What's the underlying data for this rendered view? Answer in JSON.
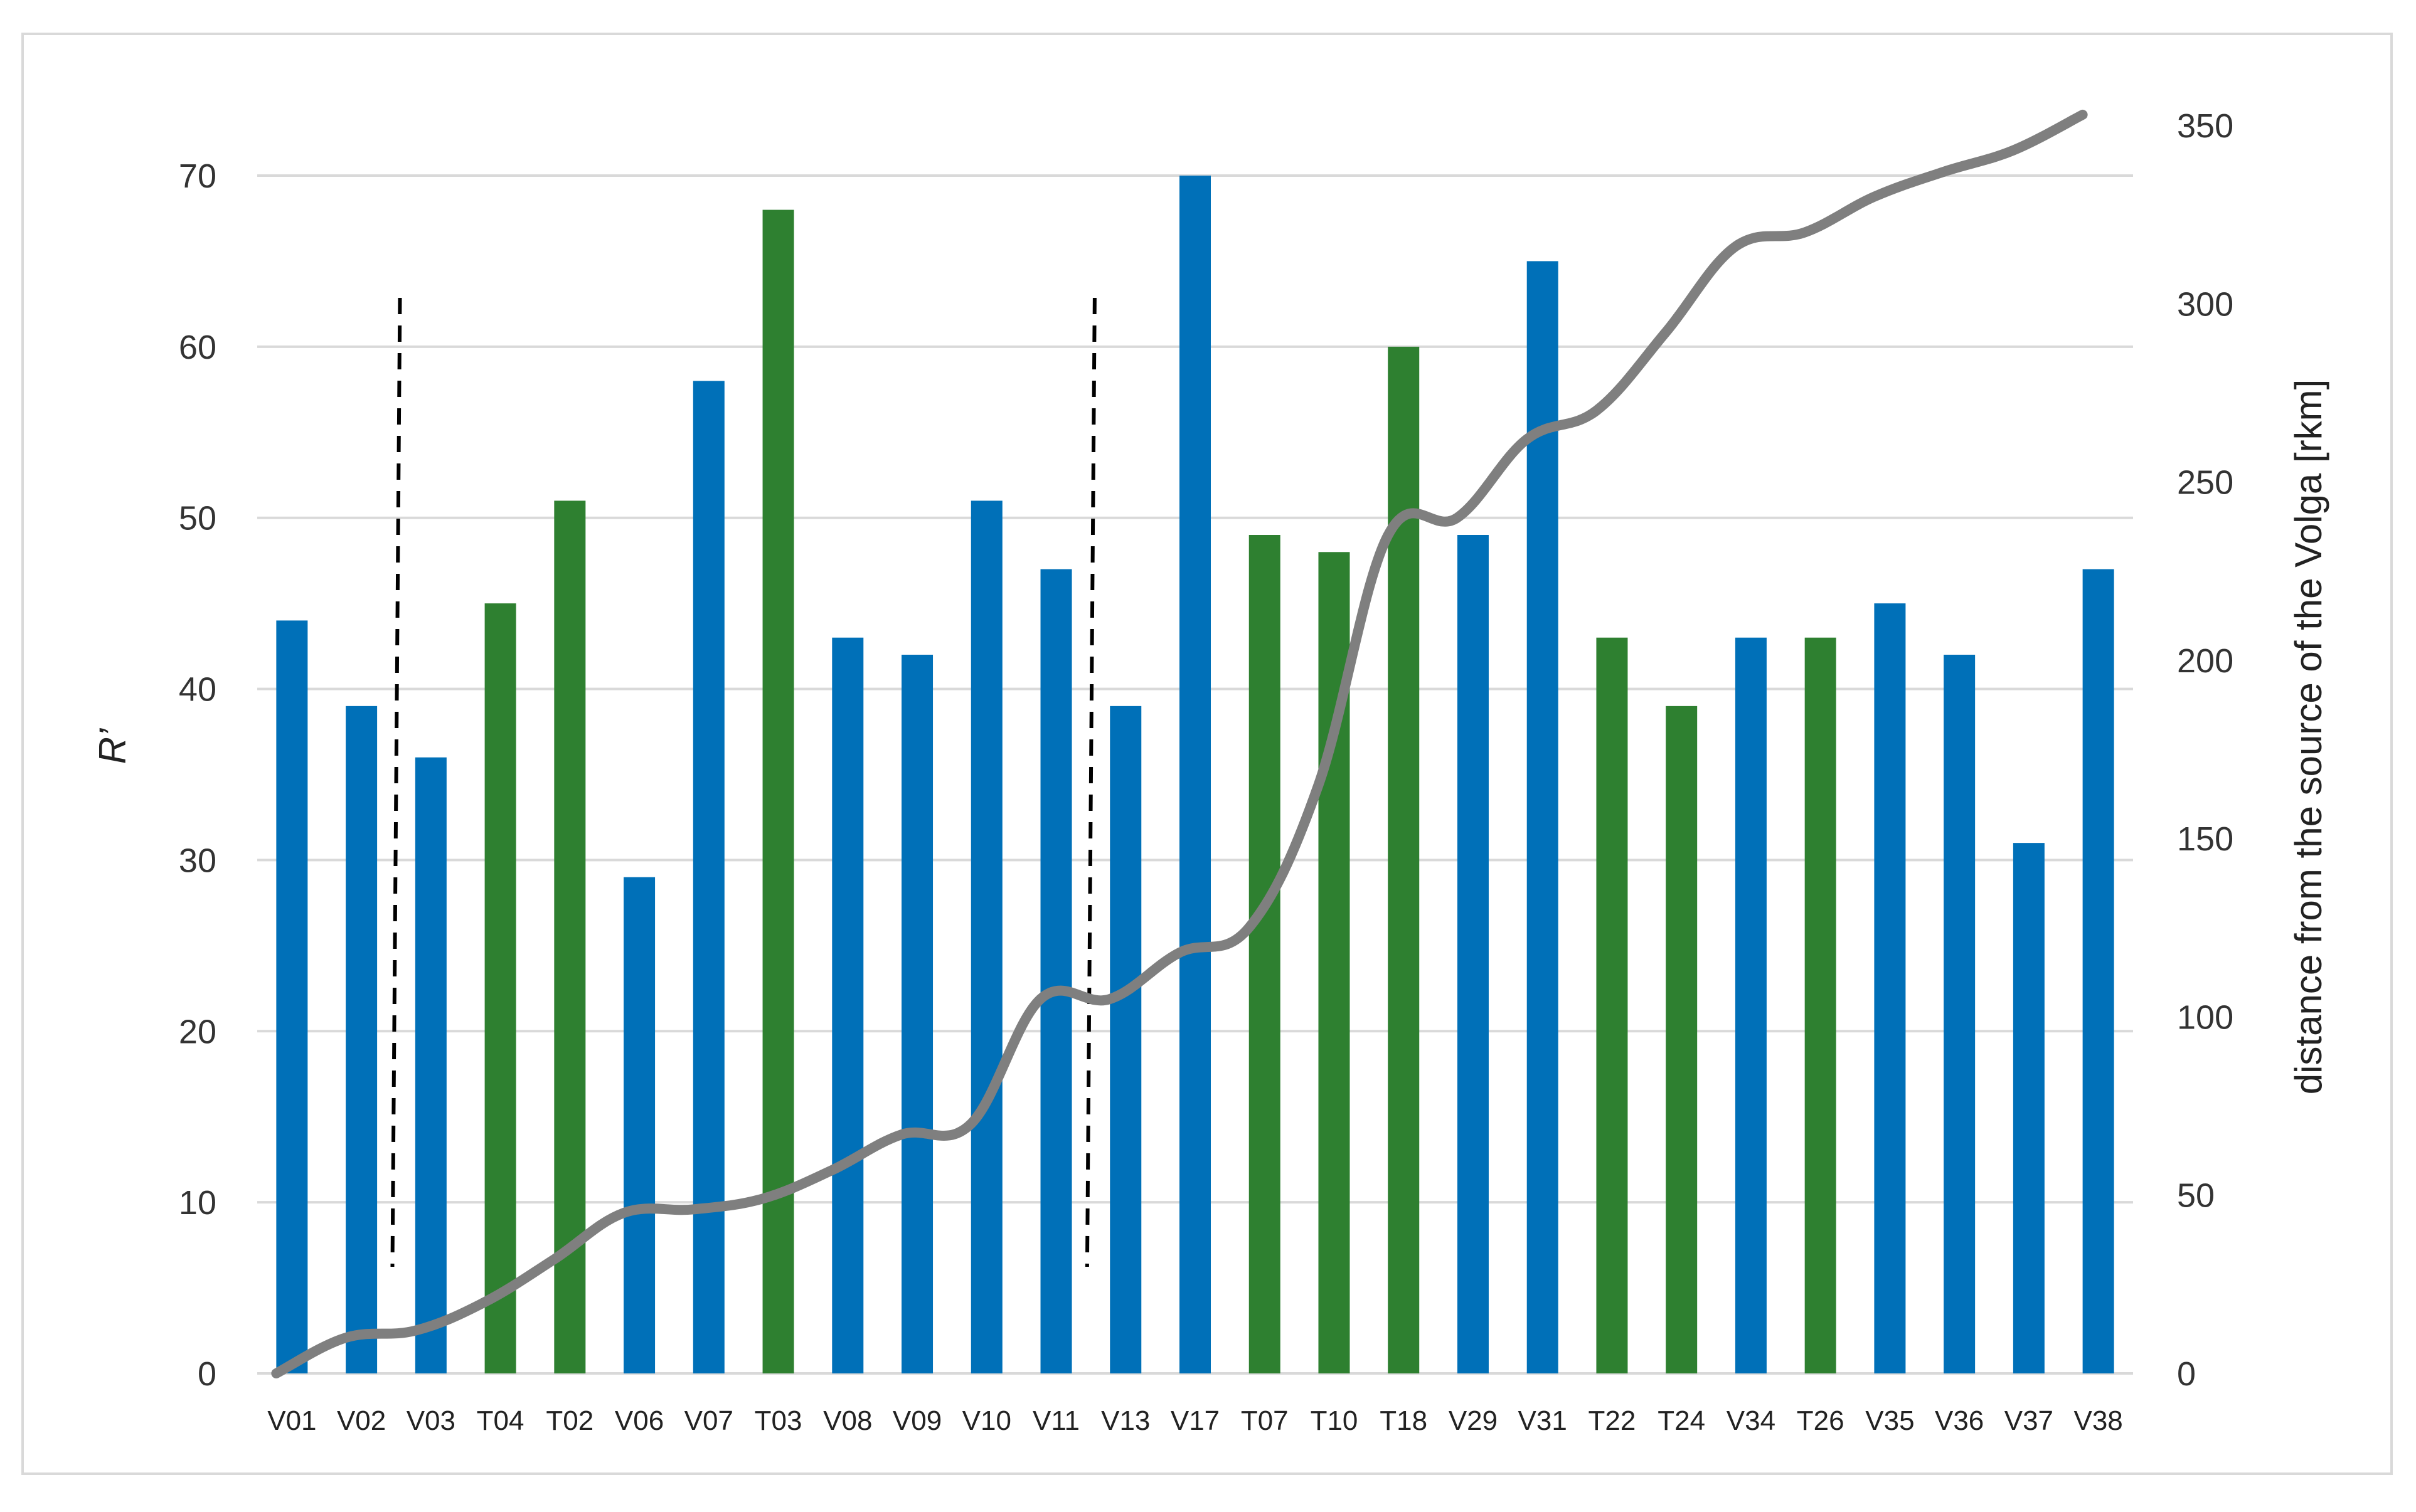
{
  "chart_data": {
    "type": "bar",
    "categories": [
      "V01",
      "V02",
      "V03",
      "T04",
      "T02",
      "V06",
      "V07",
      "T03",
      "V08",
      "V09",
      "V10",
      "V11",
      "V13",
      "V17",
      "T07",
      "T10",
      "T18",
      "V29",
      "V31",
      "T22",
      "T24",
      "V34",
      "T26",
      "V35",
      "V36",
      "V37",
      "V38"
    ],
    "values": [
      44,
      39,
      36,
      45,
      51,
      29,
      58,
      68,
      43,
      42,
      51,
      47,
      39,
      70,
      49,
      48,
      60,
      49,
      65,
      43,
      39,
      43,
      43,
      45,
      42,
      31,
      47
    ],
    "bar_groups": [
      "V",
      "V",
      "V",
      "T",
      "T",
      "V",
      "V",
      "T",
      "V",
      "V",
      "V",
      "V",
      "V",
      "V",
      "T",
      "T",
      "T",
      "V",
      "V",
      "T",
      "T",
      "V",
      "T",
      "V",
      "V",
      "V",
      "V"
    ],
    "group_colors": {
      "V": "#0070b8",
      "T": "#2e8030"
    },
    "line_series": {
      "axis": "right",
      "color": "#7f7f7f",
      "values": [
        0,
        10,
        12,
        20,
        32,
        45,
        46,
        49,
        57,
        67,
        70,
        105,
        105,
        118,
        125,
        165,
        235,
        240,
        262,
        270,
        292,
        316,
        320,
        330,
        337,
        343,
        353
      ]
    },
    "ylabel": "R’",
    "y2label": "distance from the source of the Volga [rkm]",
    "ylim": [
      0,
      75
    ],
    "y_ticks": [
      0,
      10,
      20,
      30,
      40,
      50,
      60,
      70
    ],
    "y2lim": [
      0,
      360
    ],
    "y2_ticks": [
      0,
      50,
      100,
      150,
      200,
      250,
      300,
      350
    ],
    "grid": true,
    "annotations": [
      {
        "type": "dashed-vertical-line",
        "between": [
          "V02",
          "V03"
        ]
      },
      {
        "type": "dashed-vertical-line",
        "between": [
          "V11",
          "V13"
        ]
      }
    ]
  }
}
